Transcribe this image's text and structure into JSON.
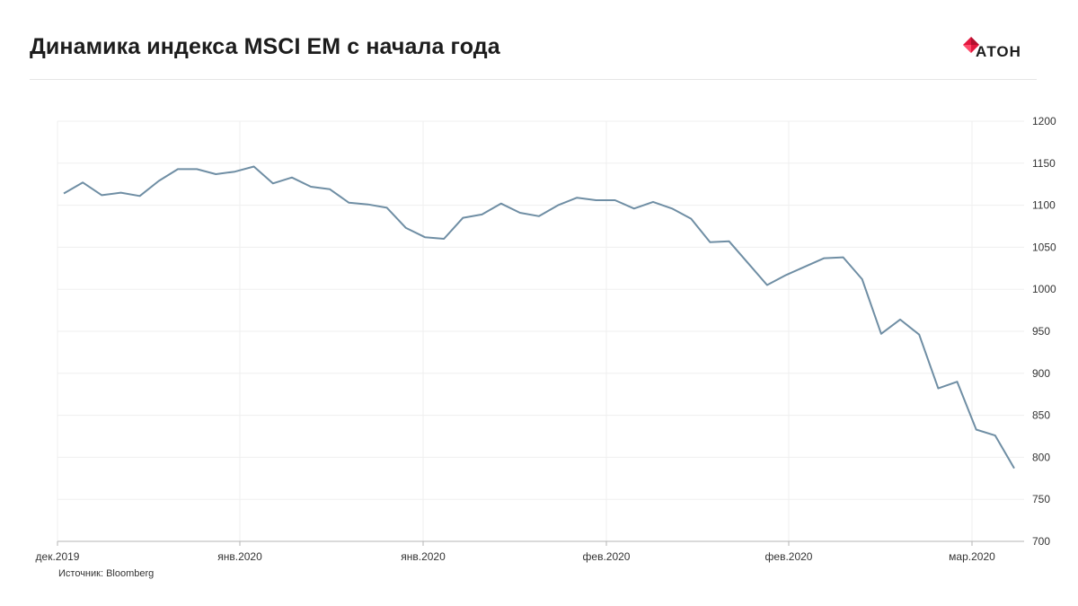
{
  "title": "Динамика индекса MSCI EM с начала года",
  "logo": {
    "text": "АТОН",
    "icon": "aton-diamond-logo-icon",
    "accent": "#e3173e"
  },
  "source": "Источник: Bloomberg",
  "chart_data": {
    "type": "line",
    "title": "Динамика индекса MSCI EM с начала года",
    "xlabel": "",
    "ylabel": "",
    "ylim": [
      700,
      1200
    ],
    "yticks": [
      700,
      750,
      800,
      850,
      900,
      950,
      1000,
      1050,
      1100,
      1150,
      1200
    ],
    "xticks": [
      "дек.2019",
      "янв.2020",
      "янв.2020",
      "фев.2020",
      "фев.2020",
      "мар.2020"
    ],
    "grid": true,
    "line_color": "#6f8ea4",
    "series": [
      {
        "values": [
          1114,
          1127,
          1112,
          1115,
          1111,
          1129,
          1143,
          1143,
          1137,
          1140,
          1146,
          1126,
          1133,
          1122,
          1119,
          1103,
          1101,
          1097,
          1073,
          1062,
          1060,
          1085,
          1089,
          1102,
          1091,
          1087,
          1100,
          1109,
          1106,
          1106,
          1096,
          1104,
          1096,
          1084,
          1056,
          1057,
          1031,
          1005,
          1017,
          1027,
          1037,
          1038,
          1012,
          947,
          964,
          946,
          882,
          890,
          833,
          826,
          787
        ]
      }
    ]
  }
}
